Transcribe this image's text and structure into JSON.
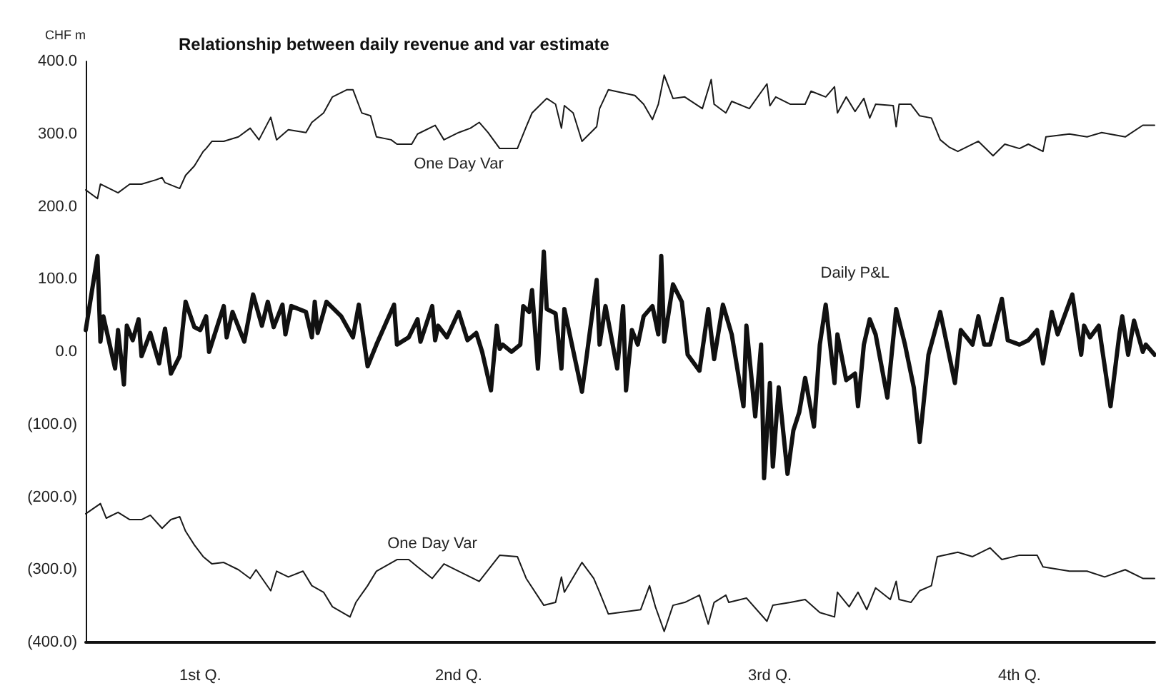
{
  "chart_data": {
    "type": "line",
    "title": "Relationship between daily revenue and var estimate",
    "ylabel": "CHF m",
    "xlim": [
      "--01-01",
      "--12-31"
    ],
    "xticks": [
      {
        "value": "--02-09",
        "label": "1st Q."
      },
      {
        "value": "--05-08",
        "label": "2nd Q."
      },
      {
        "value": "--08-22",
        "label": "3rd Q."
      },
      {
        "value": "--11-15",
        "label": "4th Q."
      }
    ],
    "ylim": [
      -400,
      400
    ],
    "yticks": [
      {
        "value": 400,
        "label": "400.0"
      },
      {
        "value": 300,
        "label": "300.0"
      },
      {
        "value": 200,
        "label": "200.0"
      },
      {
        "value": 100,
        "label": "100.0"
      },
      {
        "value": 0,
        "label": "0.0"
      },
      {
        "value": -100,
        "label": "(100.0)"
      },
      {
        "value": -200,
        "label": "(200.0)"
      },
      {
        "value": -300,
        "label": "(300.0)"
      },
      {
        "value": -400,
        "label": "(400.0)"
      }
    ],
    "grid": false,
    "legend": false,
    "marker": "none",
    "line_style": "solid",
    "series": [
      {
        "name": "One Day Var",
        "color": "#1a1a1a",
        "x": [
          "--01-01",
          "--01-05",
          "--01-06",
          "--01-12",
          "--01-16",
          "--01-20",
          "--01-25",
          "--01-27",
          "--01-28",
          "--02-02",
          "--02-04",
          "--02-07",
          "--02-10",
          "--02-11",
          "--02-13",
          "--02-17",
          "--02-22",
          "--02-26",
          "--03-01",
          "--03-05",
          "--03-07",
          "--03-11",
          "--03-17",
          "--03-19",
          "--03-23",
          "--03-26",
          "--03-31",
          "--04-02",
          "--04-05",
          "--04-08",
          "--04-10",
          "--04-15",
          "--04-17",
          "--04-22",
          "--04-24",
          "--04-30",
          "--05-03",
          "--05-08",
          "--05-12",
          "--05-15",
          "--05-18",
          "--05-22",
          "--05-28",
          "--05-31",
          "--06-02",
          "--06-07",
          "--06-10",
          "--06-12",
          "--06-13",
          "--06-16",
          "--06-19",
          "--06-24",
          "--06-25",
          "--06-28",
          "--07-07",
          "--07-10",
          "--07-13",
          "--07-15",
          "--07-17",
          "--07-20",
          "--07-24",
          "--07-30",
          "--08-02",
          "--08-03",
          "--08-07",
          "--08-09",
          "--08-15",
          "--08-21",
          "--08-22",
          "--08-24",
          "--08-29",
          "--09-03",
          "--09-05",
          "--09-10",
          "--09-13",
          "--09-14",
          "--09-17",
          "--09-20",
          "--09-23",
          "--09-25",
          "--09-27",
          "--10-03",
          "--10-04",
          "--10-05",
          "--10-09",
          "--10-12",
          "--10-16",
          "--10-19",
          "--10-22",
          "--10-25",
          "--11-01",
          "--11-06",
          "--11-10",
          "--11-15",
          "--11-18",
          "--11-23",
          "--11-24",
          "--12-02",
          "--12-08",
          "--12-13",
          "--12-21",
          "--12-27",
          "--12-31"
        ],
        "values": [
          223,
          211,
          231,
          219,
          231,
          231,
          237,
          240,
          233,
          225,
          243,
          256,
          276,
          280,
          290,
          290,
          296,
          308,
          292,
          323,
          292,
          306,
          302,
          316,
          329,
          351,
          361,
          361,
          329,
          325,
          296,
          292,
          286,
          286,
          300,
          312,
          292,
          302,
          308,
          316,
          302,
          280,
          280,
          310,
          329,
          349,
          341,
          308,
          339,
          329,
          290,
          310,
          335,
          361,
          353,
          341,
          320,
          341,
          381,
          349,
          351,
          335,
          375,
          341,
          329,
          345,
          335,
          369,
          339,
          351,
          341,
          341,
          359,
          351,
          365,
          329,
          351,
          331,
          349,
          322,
          341,
          339,
          310,
          341,
          341,
          325,
          322,
          292,
          282,
          276,
          290,
          270,
          286,
          280,
          286,
          276,
          296,
          300,
          296,
          302,
          296,
          312,
          312
        ]
      },
      {
        "name": "Daily P&L",
        "color": "#111111",
        "x": [
          "--01-01",
          "--01-05",
          "--01-06",
          "--01-07",
          "--01-11",
          "--01-12",
          "--01-14",
          "--01-15",
          "--01-17",
          "--01-19",
          "--01-20",
          "--01-23",
          "--01-26",
          "--01-28",
          "--01-30",
          "--02-02",
          "--02-04",
          "--02-07",
          "--02-09",
          "--02-11",
          "--02-12",
          "--02-17",
          "--02-18",
          "--02-20",
          "--02-24",
          "--02-27",
          "--03-02",
          "--03-04",
          "--03-06",
          "--03-09",
          "--03-10",
          "--03-12",
          "--03-17",
          "--03-19",
          "--03-20",
          "--03-21",
          "--03-24",
          "--03-29",
          "--04-02",
          "--04-04",
          "--04-07",
          "--04-10",
          "--04-16",
          "--04-17",
          "--04-21",
          "--04-24",
          "--04-25",
          "--04-29",
          "--04-30",
          "--05-01",
          "--05-04",
          "--05-08",
          "--05-11",
          "--05-14",
          "--05-16",
          "--05-19",
          "--05-21",
          "--05-22",
          "--05-23",
          "--05-26",
          "--05-29",
          "--05-30",
          "--06-01",
          "--06-02",
          "--06-04",
          "--06-06",
          "--06-07",
          "--06-10",
          "--06-12",
          "--06-13",
          "--06-19",
          "--06-24",
          "--06-25",
          "--06-27",
          "--07-01",
          "--07-03",
          "--07-04",
          "--07-06",
          "--07-08",
          "--07-10",
          "--07-13",
          "--07-15",
          "--07-16",
          "--07-17",
          "--07-20",
          "--07-23",
          "--07-25",
          "--07-29",
          "--08-01",
          "--08-03",
          "--08-06",
          "--08-09",
          "--08-13",
          "--08-14",
          "--08-17",
          "--08-19",
          "--08-20",
          "--08-22",
          "--08-23",
          "--08-25",
          "--08-28",
          "--08-30",
          "--09-01",
          "--09-03",
          "--09-06",
          "--09-08",
          "--09-10",
          "--09-13",
          "--09-14",
          "--09-17",
          "--09-20",
          "--09-21",
          "--09-23",
          "--09-25",
          "--09-27",
          "--10-01",
          "--10-04",
          "--10-07",
          "--10-10",
          "--10-12",
          "--10-15",
          "--10-19",
          "--10-24",
          "--10-26",
          "--10-30",
          "--11-01",
          "--11-03",
          "--11-05",
          "--11-09",
          "--11-11",
          "--11-15",
          "--11-18",
          "--11-21",
          "--11-23",
          "--11-26",
          "--11-28",
          "--12-03",
          "--12-06",
          "--12-07",
          "--12-09",
          "--12-12",
          "--12-16",
          "--12-19",
          "--12-20",
          "--12-22",
          "--12-24",
          "--12-27",
          "--12-28",
          "--12-31"
        ],
        "values": [
          30,
          132,
          14,
          49,
          -23,
          30,
          -45,
          36,
          16,
          45,
          -6,
          26,
          -16,
          32,
          -30,
          -6,
          69,
          34,
          30,
          49,
          0,
          63,
          20,
          55,
          14,
          79,
          36,
          69,
          34,
          65,
          24,
          63,
          55,
          20,
          69,
          26,
          69,
          49,
          20,
          65,
          -20,
          10,
          65,
          10,
          20,
          45,
          14,
          63,
          16,
          36,
          20,
          55,
          16,
          26,
          0,
          -53,
          36,
          4,
          10,
          0,
          10,
          63,
          55,
          85,
          -23,
          138,
          59,
          53,
          -23,
          59,
          -55,
          99,
          10,
          63,
          -23,
          63,
          -53,
          30,
          10,
          49,
          63,
          24,
          132,
          14,
          93,
          69,
          -4,
          -26,
          59,
          -10,
          65,
          24,
          -75,
          36,
          -89,
          10,
          -174,
          -43,
          -158,
          -49,
          -168,
          -108,
          -83,
          -36,
          -103,
          10,
          65,
          -43,
          24,
          -39,
          -30,
          -75,
          10,
          45,
          24,
          -63,
          59,
          10,
          -49,
          -124,
          -4,
          55,
          -43,
          30,
          10,
          49,
          10,
          10,
          73,
          16,
          10,
          16,
          30,
          -16,
          55,
          24,
          79,
          -4,
          36,
          20,
          36,
          -75,
          24,
          49,
          -4,
          43,
          0,
          10,
          -4
        ]
      },
      {
        "name": "One Day Var",
        "color": "#1a1a1a",
        "x": [
          "--01-01",
          "--01-06",
          "--01-08",
          "--01-12",
          "--01-16",
          "--01-20",
          "--01-23",
          "--01-27",
          "--01-30",
          "--02-02",
          "--02-04",
          "--02-07",
          "--02-10",
          "--02-13",
          "--02-17",
          "--02-22",
          "--02-26",
          "--02-28",
          "--03-05",
          "--03-07",
          "--03-11",
          "--03-16",
          "--03-19",
          "--03-23",
          "--03-26",
          "--04-01",
          "--04-03",
          "--04-07",
          "--04-10",
          "--04-17",
          "--04-21",
          "--04-24",
          "--04-29",
          "--05-03",
          "--05-08",
          "--05-15",
          "--05-22",
          "--05-28",
          "--05-31",
          "--06-06",
          "--06-10",
          "--06-12",
          "--06-13",
          "--06-19",
          "--06-23",
          "--06-25",
          "--06-28",
          "--07-09",
          "--07-12",
          "--07-14",
          "--07-17",
          "--07-20",
          "--07-24",
          "--07-29",
          "--08-01",
          "--08-03",
          "--08-07",
          "--08-08",
          "--08-14",
          "--08-21",
          "--08-23",
          "--08-29",
          "--09-03",
          "--09-08",
          "--09-13",
          "--09-14",
          "--09-18",
          "--09-21",
          "--09-24",
          "--09-27",
          "--10-02",
          "--10-04",
          "--10-05",
          "--10-09",
          "--10-12",
          "--10-16",
          "--10-18",
          "--10-25",
          "--10-30",
          "--11-05",
          "--11-09",
          "--11-15",
          "--11-21",
          "--11-23",
          "--12-02",
          "--12-08",
          "--12-14",
          "--12-21",
          "--12-27",
          "--12-31"
        ],
        "values": [
          -223,
          -209,
          -229,
          -221,
          -231,
          -231,
          -225,
          -243,
          -231,
          -227,
          -247,
          -266,
          -282,
          -292,
          -290,
          -300,
          -312,
          -300,
          -329,
          -302,
          -310,
          -302,
          -322,
          -331,
          -351,
          -365,
          -345,
          -322,
          -302,
          -286,
          -286,
          -296,
          -312,
          -292,
          -302,
          -316,
          -280,
          -282,
          -312,
          -349,
          -345,
          -310,
          -331,
          -290,
          -312,
          -331,
          -361,
          -355,
          -322,
          -351,
          -385,
          -349,
          -345,
          -335,
          -375,
          -345,
          -335,
          -345,
          -339,
          -371,
          -349,
          -345,
          -341,
          -359,
          -365,
          -331,
          -351,
          -331,
          -355,
          -325,
          -341,
          -316,
          -341,
          -345,
          -329,
          -322,
          -282,
          -276,
          -282,
          -270,
          -286,
          -280,
          -280,
          -296,
          -302,
          -302,
          -310,
          -300,
          -312,
          -312
        ]
      }
    ]
  }
}
